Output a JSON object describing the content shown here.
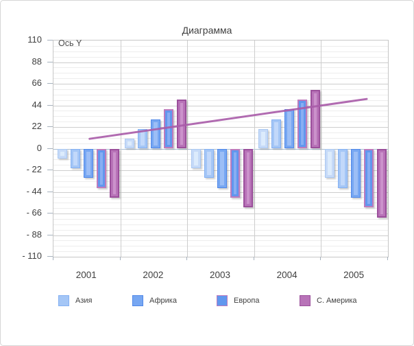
{
  "chart_data": {
    "type": "bar",
    "title": "Диаграмма",
    "y_axis_label": "Ось Y",
    "categories": [
      "2001",
      "2002",
      "2003",
      "2004",
      "2005"
    ],
    "ylim": [
      -110,
      110
    ],
    "major_step": 22,
    "minor_step": 5.5,
    "grid": "major+minor, horizontal and vertical category dividers",
    "legend_position": "bottom",
    "y_tick_labels": [
      "110",
      "88",
      "66",
      "44",
      "22",
      "0",
      "- 22",
      "- 44",
      "- 66",
      "- 88",
      "- 110"
    ],
    "series": [
      {
        "name": "",
        "legend_visible": false,
        "values": [
          -10,
          10,
          -20,
          20,
          -30
        ],
        "fill": "#c6daf8",
        "border": "#aac8f2",
        "highlight": "#dcebfc",
        "border_px": 1
      },
      {
        "name": "Азия",
        "legend_visible": true,
        "values": [
          -20,
          20,
          -30,
          30,
          -40
        ],
        "fill": "#a4c6f6",
        "border": "#84b0f2",
        "highlight": "#c2d8fa",
        "border_px": 1
      },
      {
        "name": "Африка",
        "legend_visible": true,
        "values": [
          -30,
          30,
          -40,
          40,
          -50
        ],
        "fill": "#77a7f2",
        "border": "#4f87e8",
        "highlight": "#9cbef6",
        "border_px": 1
      },
      {
        "name": "Европа",
        "legend_visible": true,
        "values": [
          -40,
          40,
          -50,
          50,
          -60
        ],
        "fill": "#6197ee",
        "border": "#bd7bbd",
        "highlight": "#87aef3",
        "border_px": 2
      },
      {
        "name": "С. Америка",
        "legend_visible": true,
        "values": [
          -50,
          50,
          -60,
          60,
          -70
        ],
        "fill": "#b873b8",
        "border": "#9b4f9b",
        "highlight": "#cb92cb",
        "border_px": 2
      }
    ],
    "trend_line": {
      "color": "#a95ca9",
      "x1_frac": 0.108,
      "value1": 10,
      "x2_frac": 0.9365,
      "value2": 50.5
    },
    "legend": [
      {
        "label": "Азия",
        "series": 1
      },
      {
        "label": "Африка",
        "series": 2
      },
      {
        "label": "Европа",
        "series": 3
      },
      {
        "label": "С. Америка",
        "series": 4
      }
    ]
  }
}
